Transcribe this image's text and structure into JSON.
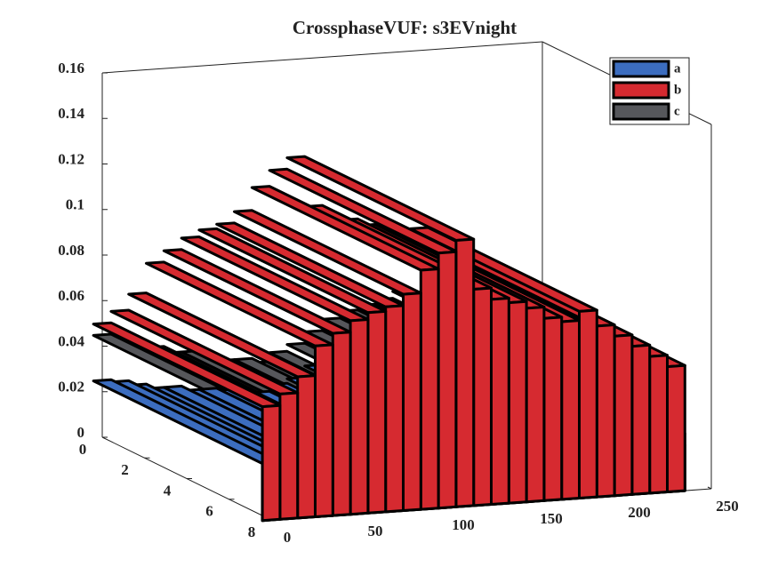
{
  "chart_data": {
    "type": "surface3d",
    "title": "CrossphaseVUF: s3EVnight",
    "x": [
      0,
      10,
      20,
      30,
      40,
      50,
      60,
      70,
      80,
      90,
      100,
      110,
      120,
      130,
      140,
      150,
      160,
      170,
      180,
      190,
      200,
      210,
      220,
      230
    ],
    "series": [
      {
        "name": "a",
        "color": "#3c6dbf",
        "values": [
          0.025,
          0.024,
          0.022,
          0.02,
          0.02,
          0.018,
          0.018,
          0.017,
          0.016,
          0.015,
          0.018,
          0.02,
          0.025,
          0.03,
          0.032,
          0.035,
          0.038,
          0.04,
          0.037,
          0.033,
          0.03,
          0.028,
          0.025,
          0.02
        ]
      },
      {
        "name": "b",
        "color": "#d62a30",
        "values": [
          0.05,
          0.055,
          0.062,
          0.075,
          0.08,
          0.085,
          0.088,
          0.09,
          0.095,
          0.105,
          0.112,
          0.117,
          0.095,
          0.09,
          0.088,
          0.085,
          0.08,
          0.078,
          0.082,
          0.075,
          0.07,
          0.065,
          0.06,
          0.055
        ]
      },
      {
        "name": "c",
        "color": "#56575b",
        "values": [
          0.045,
          0.042,
          0.04,
          0.038,
          0.035,
          0.035,
          0.033,
          0.03,
          0.03,
          0.028,
          0.032,
          0.035,
          0.04,
          0.045,
          0.048,
          0.05,
          0.052,
          0.055,
          0.05,
          0.045,
          0.04,
          0.035,
          0.03,
          0.025
        ]
      }
    ],
    "xlim": [
      0,
      250
    ],
    "xticks": [
      0,
      50,
      100,
      150,
      200,
      250
    ],
    "ylim": [
      0,
      8
    ],
    "yticks": [
      0,
      2,
      4,
      6,
      8
    ],
    "zlim": [
      0,
      0.16
    ],
    "zticks": [
      0,
      0.02,
      0.04,
      0.06,
      0.08,
      0.1,
      0.12,
      0.14,
      0.16
    ],
    "legend": "top-right",
    "grid": false
  }
}
